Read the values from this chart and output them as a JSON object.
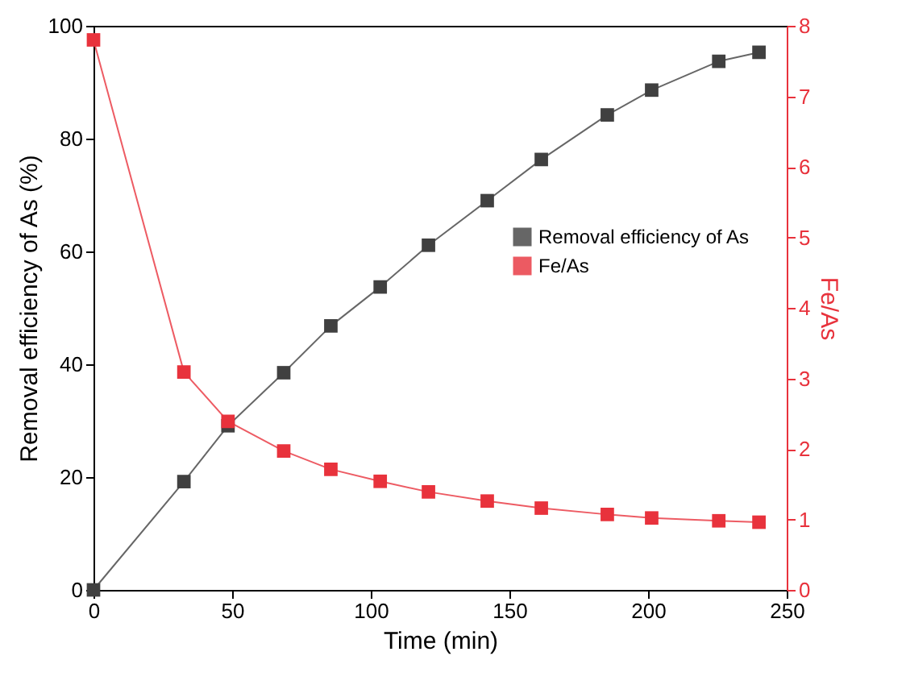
{
  "chart_data": {
    "type": "line",
    "xlabel": "Time (min)",
    "ylabel": "Removal efficiency of As (%)",
    "y2label": "Fe/As",
    "x": [
      0,
      32.6,
      48.5,
      68.6,
      85.6,
      103.4,
      120.8,
      142,
      161.5,
      185.3,
      201.3,
      225.5,
      240
    ],
    "series": [
      {
        "name": "Removal efficiency of As",
        "color": "#404040",
        "values": [
          0,
          19.2,
          29.1,
          38.5,
          46.8,
          53.7,
          61.1,
          69.0,
          76.3,
          84.2,
          88.6,
          93.7,
          95.3
        ]
      },
      {
        "name": "Fe/As",
        "color": "#e8323c",
        "axis": "y2",
        "values": [
          7.8,
          3.09,
          2.39,
          1.97,
          1.71,
          1.54,
          1.39,
          1.26,
          1.16,
          1.07,
          1.02,
          0.98,
          0.96
        ]
      }
    ],
    "xlim": [
      0,
      250
    ],
    "xticks": [
      0,
      50,
      100,
      150,
      200,
      250
    ],
    "ylim": [
      0,
      100
    ],
    "yticks": [
      0,
      20,
      40,
      60,
      80,
      100
    ],
    "y2lim": [
      0,
      8
    ],
    "y2ticks": [
      0,
      1,
      2,
      3,
      4,
      5,
      6,
      7,
      8
    ],
    "marker": "square",
    "line_style": "solid",
    "legend": "right",
    "grid": false
  }
}
